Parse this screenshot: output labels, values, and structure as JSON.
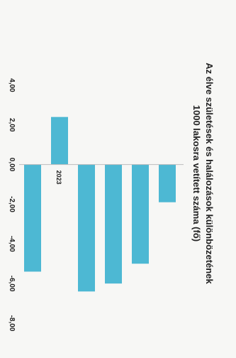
{
  "chart_data": {
    "type": "bar",
    "orientation": "horizontal",
    "display_rotation_deg": 90,
    "title": "Az élve születések és halálozások különbözetének",
    "subtitle": "1000 lakosra vetített száma (fő)",
    "xlabel": "",
    "ylabel": "",
    "axis_ticks": [
      "4,00",
      "2,00",
      "0,00",
      "-2,00",
      "-4,00",
      "-6,00",
      "-8,00"
    ],
    "xlim": [
      -8,
      4
    ],
    "grid": false,
    "legend": "none",
    "categories": [
      "",
      "",
      "",
      "",
      "2023",
      ""
    ],
    "values": [
      -1.9,
      -5.0,
      -6.0,
      -6.4,
      2.4,
      -5.4
    ],
    "colors": {
      "bar": "#4db8d3",
      "axis": "#bcbcbc",
      "text": "#222222",
      "bg": "#f7f7f5"
    }
  }
}
